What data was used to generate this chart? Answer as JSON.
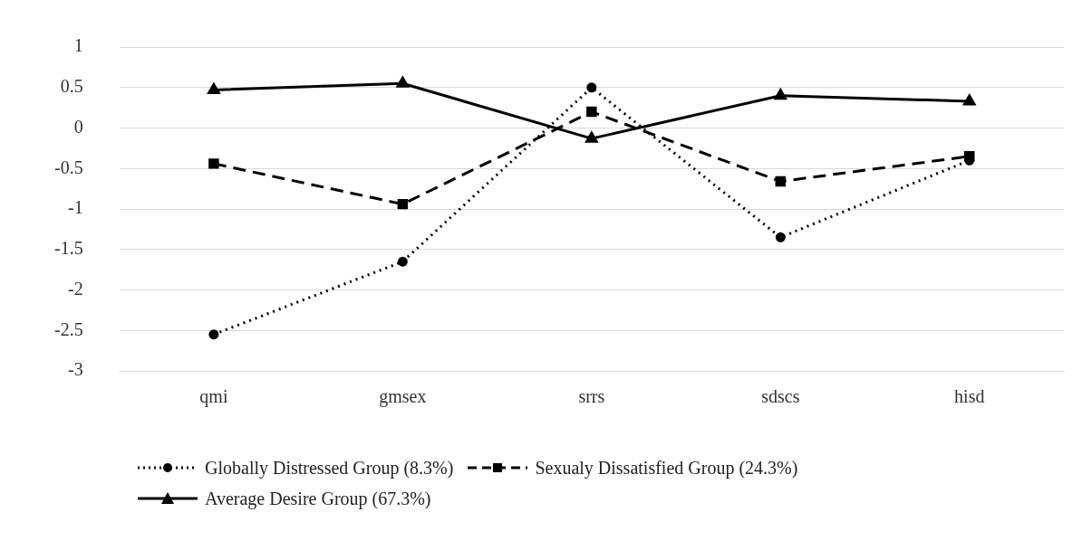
{
  "chart_data": {
    "type": "line",
    "categories": [
      "qmi",
      "gmsex",
      "srrs",
      "sdscs",
      "hisd"
    ],
    "series": [
      {
        "name": "Globally Distressed Group (8.3%)",
        "color": "#000000",
        "values": [
          -2.55,
          -1.65,
          0.5,
          -1.35,
          -0.4
        ],
        "marker": "circle",
        "line_style": "dotted"
      },
      {
        "name": "Sexualy Dissatisfied Group (24.3%)",
        "color": "#000000",
        "values": [
          -0.44,
          -0.94,
          0.2,
          -0.66,
          -0.35
        ],
        "marker": "square",
        "line_style": "dashed"
      },
      {
        "name": "Average Desire Group (67.3%)",
        "color": "#000000",
        "values": [
          0.47,
          0.55,
          -0.13,
          0.4,
          0.33
        ],
        "marker": "triangle",
        "line_style": "solid"
      }
    ],
    "ylim": [
      -3,
      1
    ],
    "yticks": [
      -3,
      -2.5,
      -2,
      -1.5,
      -1,
      -0.5,
      0,
      0.5,
      1
    ],
    "grid": "y",
    "legend": "bottom"
  }
}
